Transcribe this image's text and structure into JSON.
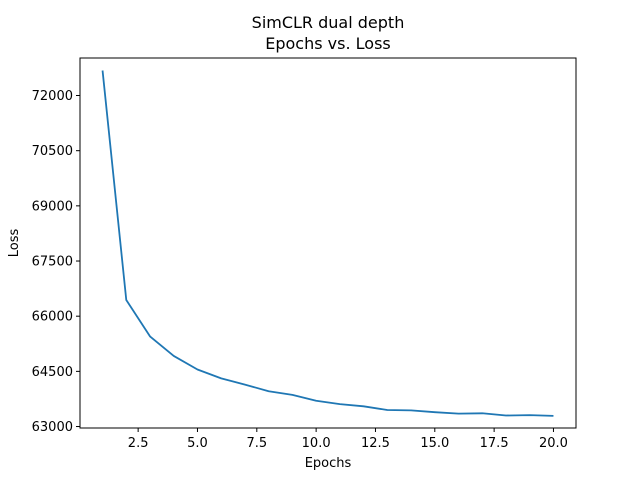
{
  "chart_data": {
    "type": "line",
    "title": "SimCLR dual depth",
    "subtitle": "Epochs vs. Loss",
    "xlabel": "Epochs",
    "ylabel": "Loss",
    "x": [
      1,
      2,
      3,
      4,
      5,
      6,
      7,
      8,
      9,
      10,
      11,
      12,
      13,
      14,
      15,
      16,
      17,
      18,
      19,
      20
    ],
    "series": [
      {
        "name": "",
        "color": "#1f77b4",
        "values": [
          72680,
          66440,
          65450,
          64920,
          64550,
          64310,
          64140,
          63960,
          63860,
          63700,
          63610,
          63550,
          63450,
          63440,
          63390,
          63350,
          63360,
          63300,
          63310,
          63290
        ]
      }
    ],
    "xlim": [
      0.05,
      20.95
    ],
    "ylim": [
      62960,
      73020
    ],
    "xticks": [
      2.5,
      5.0,
      7.5,
      10.0,
      12.5,
      15.0,
      17.5,
      20.0
    ],
    "xtick_labels": [
      "2.5",
      "5.0",
      "7.5",
      "10.0",
      "12.5",
      "15.0",
      "17.5",
      "20.0"
    ],
    "yticks": [
      63000,
      64500,
      66000,
      67500,
      69000,
      70500,
      72000
    ],
    "ytick_labels": [
      "63000",
      "64500",
      "66000",
      "67500",
      "69000",
      "70500",
      "72000"
    ],
    "grid": false
  }
}
